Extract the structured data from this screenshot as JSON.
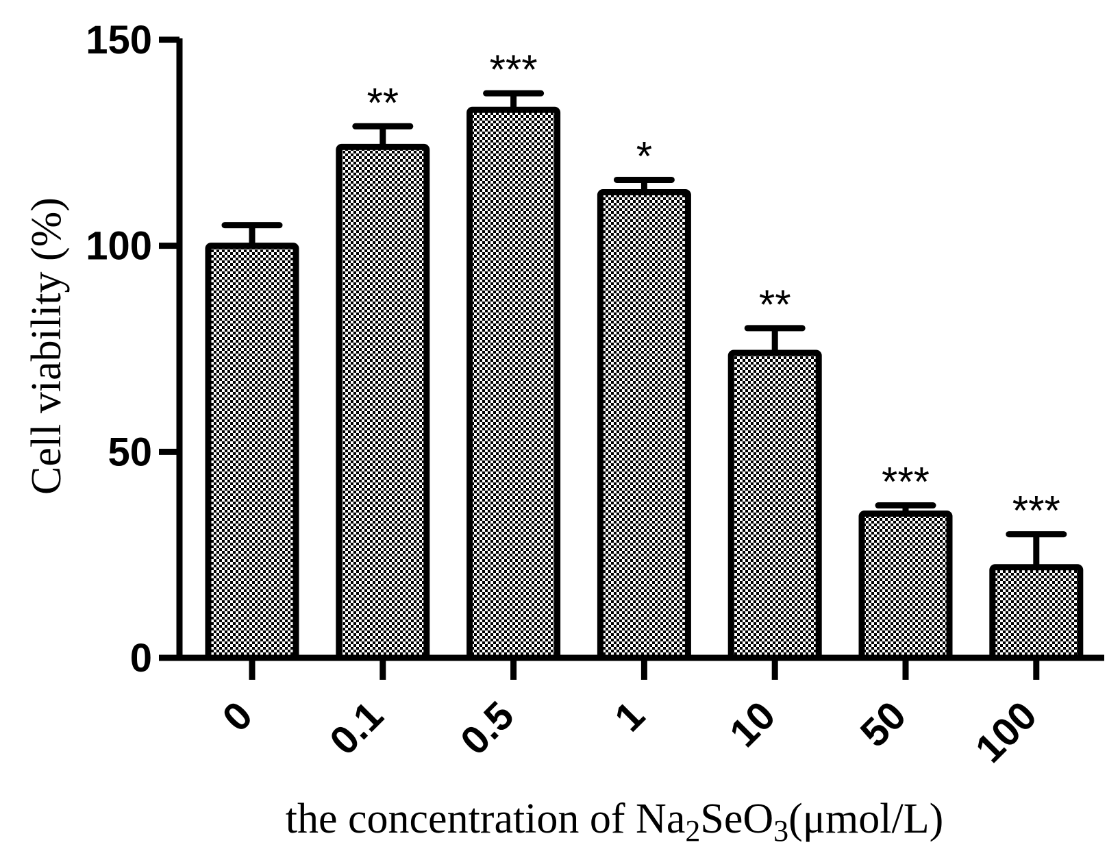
{
  "chart_data": {
    "type": "bar",
    "categories": [
      "0",
      "0.1",
      "0.5",
      "1",
      "10",
      "50",
      "100"
    ],
    "values": [
      100,
      124,
      133,
      113,
      74,
      35,
      22
    ],
    "errors": [
      5,
      5,
      4,
      3,
      6,
      2,
      8
    ],
    "significance": [
      "",
      "**",
      "***",
      "*",
      "**",
      "***",
      "***"
    ],
    "title": "",
    "ylabel": "Cell viability (%)",
    "xlabel_parts": {
      "prefix": "the concentration of Na",
      "sub1": "2",
      "middle": "SeO",
      "sub2": "3",
      "suffix": "(μmol/L)"
    },
    "ylim": [
      0,
      150
    ],
    "yticks": [
      0,
      50,
      100,
      150
    ],
    "grid": false,
    "legend": "none",
    "bar_fill": "checkerboard",
    "colors": {
      "bar_stroke": "#000000",
      "bar_pattern_dark": "#000000",
      "bar_pattern_light": "#ffffff"
    }
  }
}
